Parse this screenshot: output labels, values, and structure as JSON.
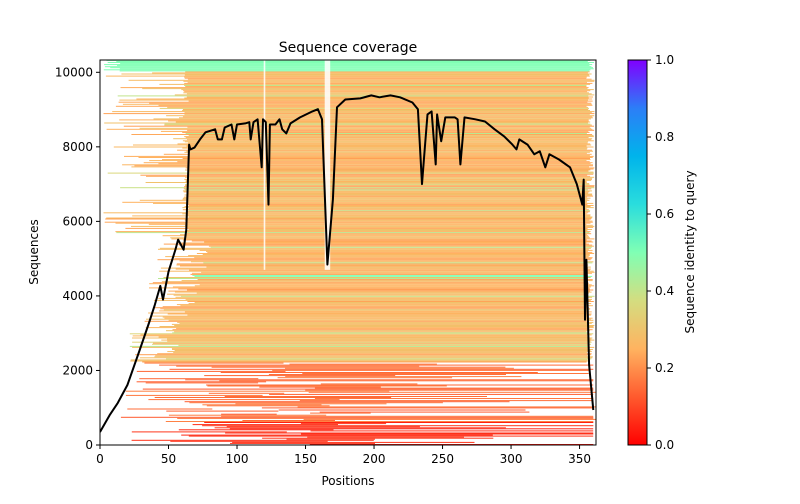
{
  "chart_data": {
    "type": "heatmap",
    "title": "Sequence coverage",
    "xlabel": "Positions",
    "ylabel": "Sequences",
    "xlim": [
      0,
      362
    ],
    "ylim": [
      0,
      10330
    ],
    "xticks": [
      0,
      50,
      100,
      150,
      200,
      250,
      300,
      350
    ],
    "yticks": [
      0,
      2000,
      4000,
      6000,
      8000,
      10000
    ],
    "grid": false,
    "colorbar": {
      "label": "Sequence identity to query",
      "colormap": "rainbow_r",
      "range": [
        0.0,
        1.0
      ],
      "ticks": [
        "0.0",
        "0.2",
        "0.4",
        "0.6",
        "0.8",
        "1.0"
      ],
      "stops": [
        "#ff0000",
        "#ff5a2e",
        "#ffb360",
        "#d4dd80",
        "#80ffb4",
        "#2adddd",
        "#00b4eb",
        "#2c7ef7",
        "#8000ff"
      ]
    },
    "series": [
      {
        "name": "coverage",
        "color": "#000000",
        "x": [
          0,
          7,
          13,
          20,
          29,
          36,
          40,
          44,
          46,
          50,
          55,
          57,
          61,
          63,
          65,
          66,
          69,
          73,
          77,
          84,
          86,
          89,
          91,
          96,
          98,
          100,
          106,
          109,
          110,
          112,
          115,
          118,
          119,
          121,
          123,
          124,
          128,
          131,
          133,
          136,
          139,
          146,
          155,
          159,
          162,
          166,
          170,
          173,
          179,
          190,
          198,
          204,
          212,
          219,
          228,
          232,
          235,
          237,
          239,
          242,
          245,
          246,
          249,
          252,
          259,
          261,
          263,
          266,
          274,
          281,
          288,
          295,
          301,
          304,
          306,
          312,
          317,
          321,
          325,
          328,
          335,
          343,
          348,
          352,
          353,
          354,
          355,
          357,
          360
        ],
        "y": [
          350,
          800,
          1130,
          1610,
          2550,
          3300,
          3760,
          4270,
          3900,
          4650,
          5240,
          5510,
          5240,
          5780,
          8060,
          7930,
          7980,
          8200,
          8390,
          8470,
          8200,
          8200,
          8520,
          8600,
          8200,
          8600,
          8630,
          8660,
          8200,
          8660,
          8740,
          7450,
          8740,
          8660,
          6450,
          8600,
          8600,
          8740,
          8470,
          8360,
          8630,
          8790,
          8950,
          9010,
          8740,
          4840,
          6590,
          9060,
          9270,
          9300,
          9380,
          9330,
          9380,
          9330,
          9190,
          9010,
          7000,
          7930,
          8870,
          8950,
          7530,
          8870,
          8150,
          8790,
          8790,
          8740,
          7530,
          8790,
          8740,
          8680,
          8470,
          8280,
          8060,
          7930,
          8200,
          8060,
          7800,
          7880,
          7450,
          7800,
          7660,
          7450,
          7000,
          6450,
          7120,
          3360,
          4970,
          2150,
          940
        ]
      }
    ]
  }
}
